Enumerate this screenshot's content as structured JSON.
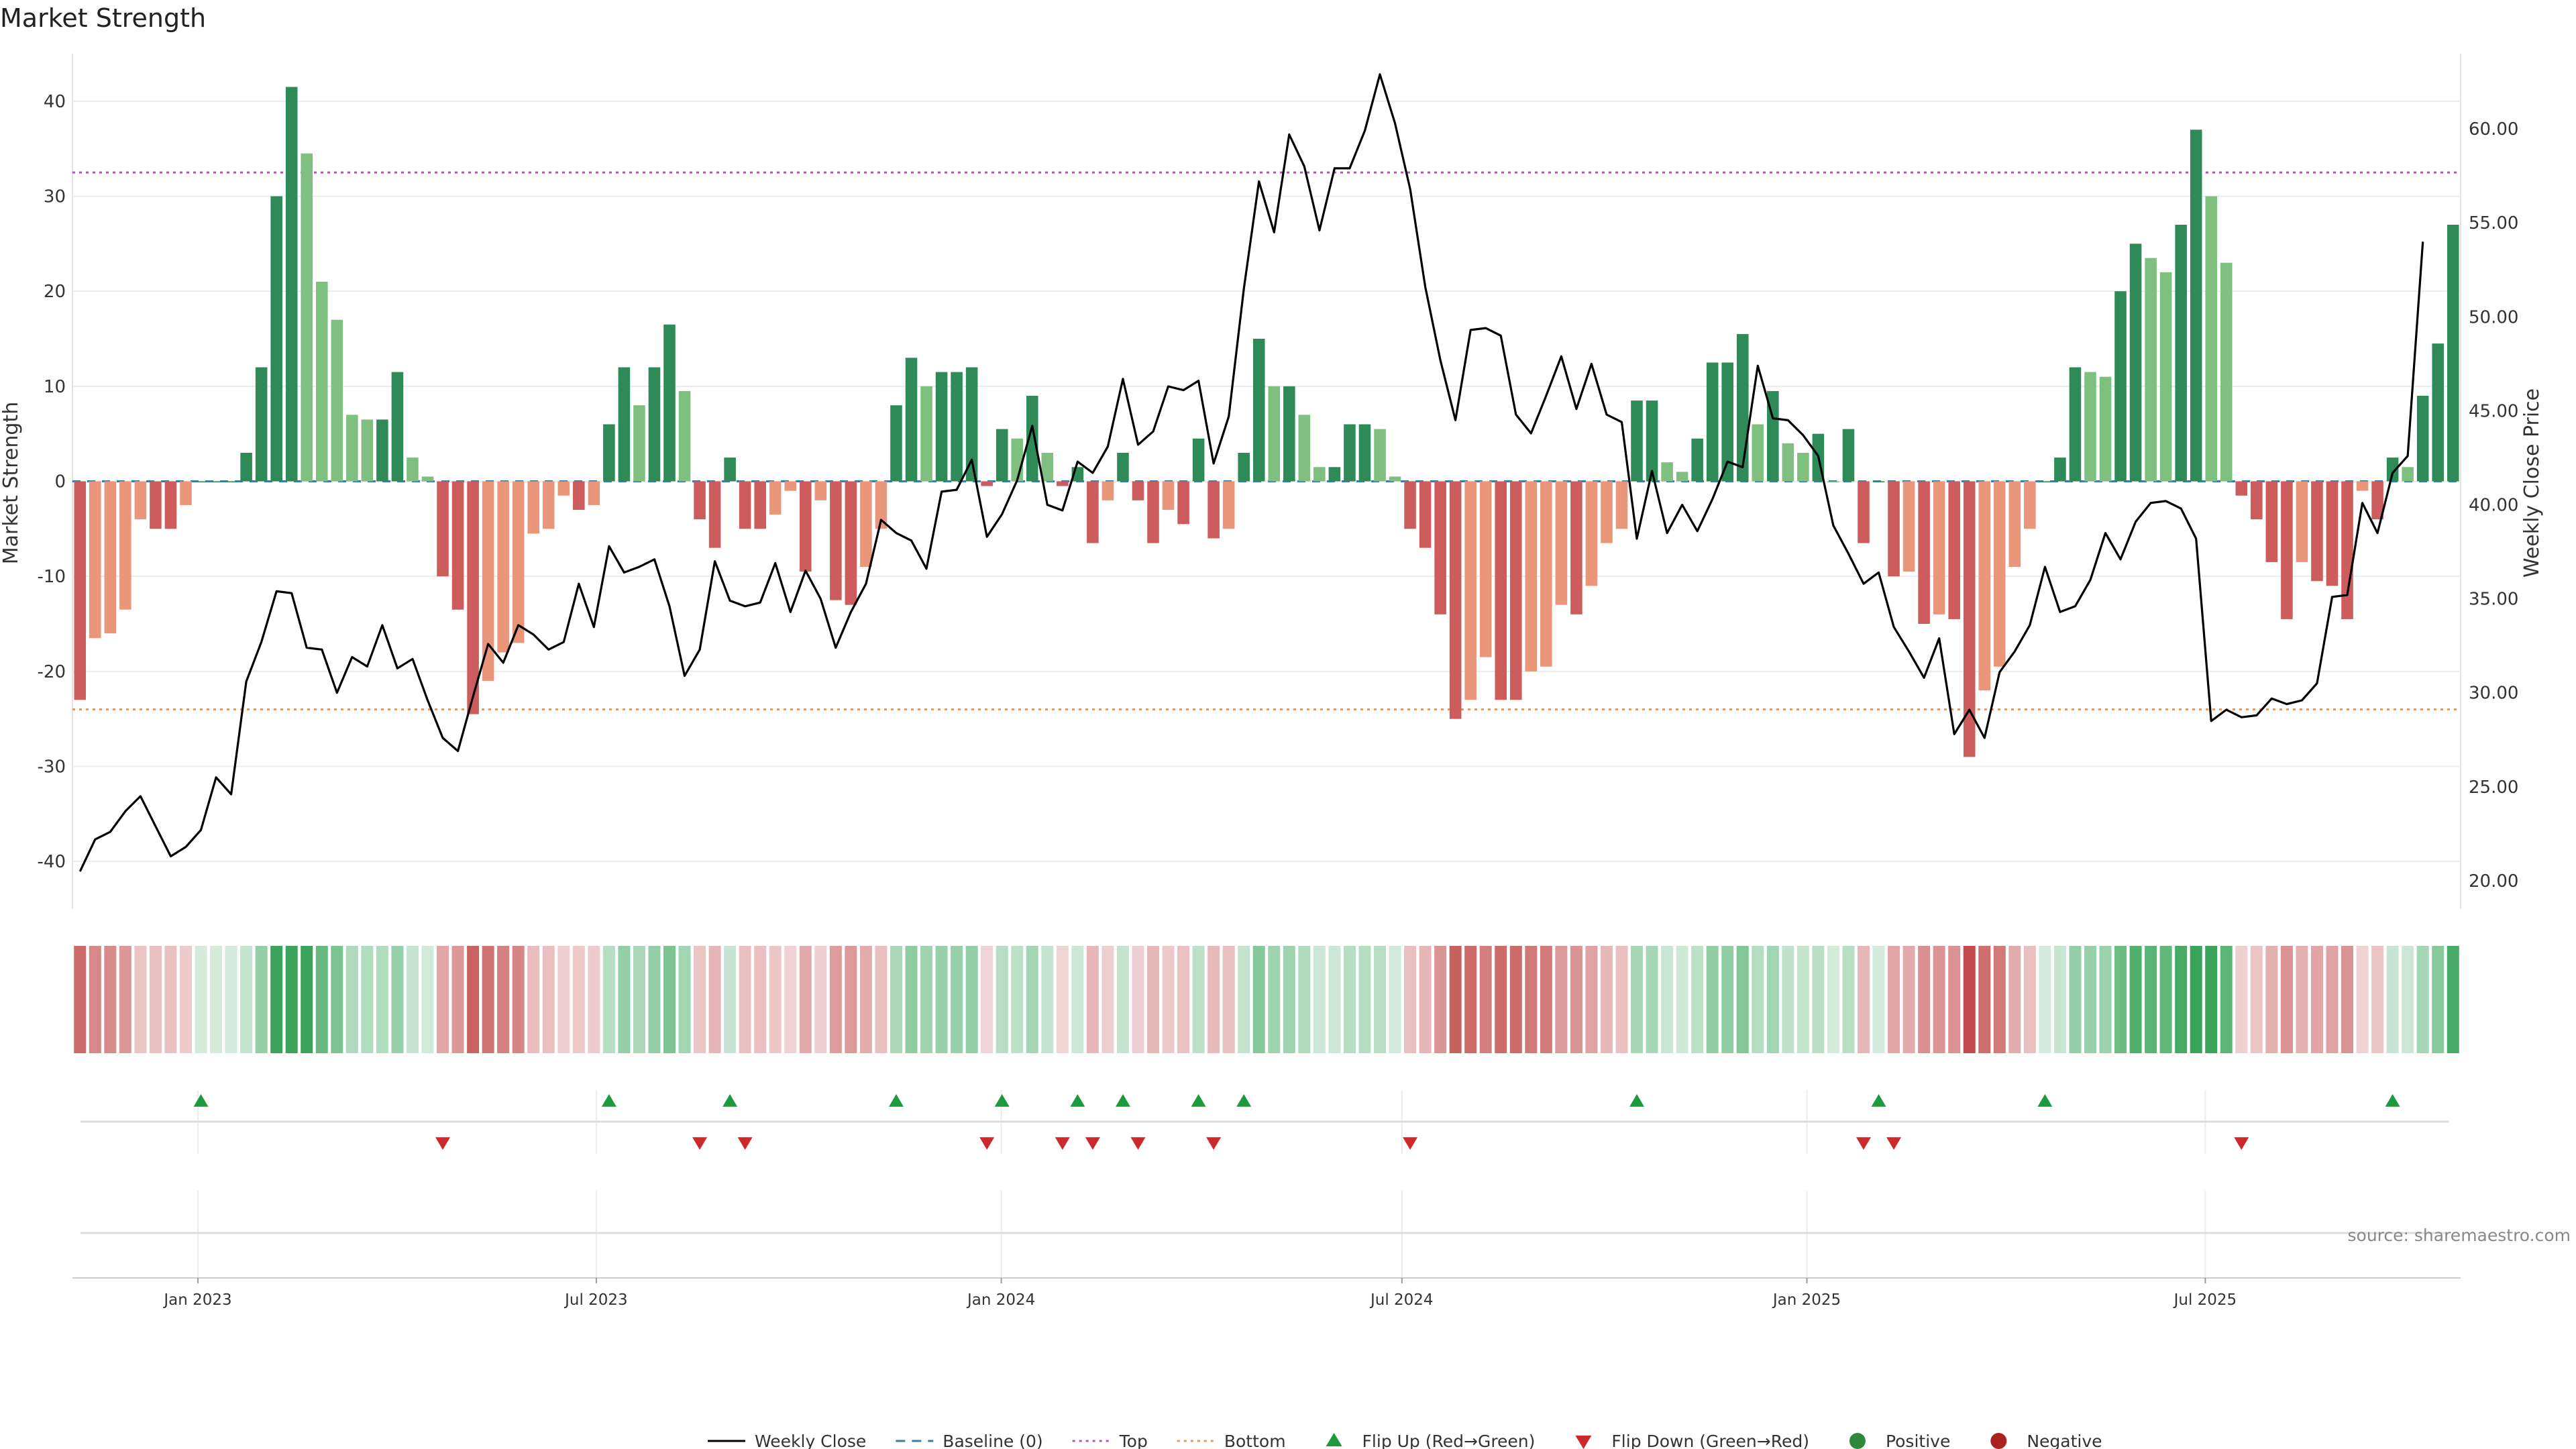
{
  "chart_data": {
    "type": "bar",
    "title": "Market Strength",
    "ylabel": "Market Strength",
    "y2label": "Weekly Close Price",
    "ylim": [
      -45,
      45
    ],
    "y2lim": [
      18.5,
      64
    ],
    "yticks": [
      40,
      30,
      20,
      10,
      0,
      -10,
      -20,
      -30,
      -40
    ],
    "y2ticks": [
      "60.00",
      "55.00",
      "50.00",
      "45.00",
      "40.00",
      "35.00",
      "30.00",
      "25.00",
      "20.00"
    ],
    "x_start": "2022-11-05",
    "x_end": "2025-10-25",
    "x_tick_labels": [
      {
        "label": "Jan 2023",
        "date": "2023-01-01"
      },
      {
        "label": "Jul 2023",
        "date": "2023-07-01"
      },
      {
        "label": "Jan 2024",
        "date": "2024-01-01"
      },
      {
        "label": "Jul 2024",
        "date": "2024-07-01"
      },
      {
        "label": "Jan 2025",
        "date": "2025-01-01"
      },
      {
        "label": "Jul 2025",
        "date": "2025-07-01"
      }
    ],
    "reference_lines": {
      "top": 32.5,
      "bottom": -24,
      "baseline": 0
    },
    "strength": [
      -23,
      -16.5,
      -16,
      -13.5,
      -4,
      -5,
      -5,
      -2.5,
      0,
      0,
      0,
      3,
      12,
      30,
      41.5,
      34.5,
      21,
      17,
      7,
      6.5,
      6.5,
      11.5,
      2.5,
      0.5,
      -10,
      -13.5,
      -24.5,
      -21,
      -18,
      -17,
      -5.5,
      -5,
      -1.5,
      -3,
      -2.5,
      6,
      12,
      8,
      12,
      16.5,
      9.5,
      -4,
      -7,
      2.5,
      -5,
      -5,
      -3.5,
      -1,
      -9.5,
      -2,
      -12.5,
      -13,
      -9,
      -5,
      8,
      13,
      10,
      11.5,
      11.5,
      12,
      -0.5,
      5.5,
      4.5,
      9,
      3,
      -0.5,
      1.5,
      -6.5,
      -2,
      3,
      -2,
      -6.5,
      -3,
      -4.5,
      4.5,
      -6,
      -5,
      3,
      15,
      10,
      10,
      7,
      1.5,
      1.5,
      6,
      6,
      5.5,
      0.5,
      -5,
      -7,
      -14,
      -25,
      -23,
      -18.5,
      -23,
      -23,
      -20,
      -19.5,
      -13,
      -14,
      -11,
      -6.5,
      -5,
      8.5,
      8.5,
      2,
      1,
      4.5,
      12.5,
      12.5,
      15.5,
      6,
      9.5,
      4,
      3,
      5,
      0,
      5.5,
      -6.5,
      0,
      -10,
      -9.5,
      -15,
      -14,
      -14.5,
      -29,
      -22,
      -19.5,
      -9,
      -5,
      0,
      2.5,
      12,
      11.5,
      11,
      20,
      25,
      23.5,
      22,
      27,
      37,
      30,
      23,
      -1.5,
      -4,
      -8.5,
      -14.5,
      -8.5,
      -10.5,
      -11,
      -14.5,
      -1,
      -4,
      2.5,
      1.5,
      9,
      14.5,
      27
    ],
    "close": [
      20.5,
      22.2,
      22.6,
      23.7,
      24.5,
      22.9,
      21.3,
      21.8,
      22.7,
      25.5,
      24.6,
      30.6,
      32.7,
      35.4,
      35.3,
      32.4,
      32.3,
      30,
      31.9,
      31.4,
      33.6,
      31.3,
      31.8,
      29.6,
      27.6,
      26.9,
      29.8,
      32.6,
      31.6,
      33.6,
      33.1,
      32.3,
      32.7,
      35.8,
      33.5,
      37.8,
      36.4,
      36.7,
      37.1,
      34.6,
      30.9,
      32.3,
      37,
      34.9,
      34.6,
      34.8,
      36.9,
      34.3,
      36.5,
      35,
      32.4,
      34.3,
      35.8,
      39.2,
      38.5,
      38.1,
      36.6,
      40.7,
      40.8,
      42.4,
      38.3,
      39.5,
      41.3,
      44.2,
      40,
      39.7,
      42.3,
      41.7,
      43.1,
      46.7,
      43.2,
      43.9,
      46.3,
      46.1,
      46.6,
      42.2,
      44.7,
      51.5,
      57.2,
      54.5,
      59.7,
      58,
      54.6,
      57.9,
      57.9,
      59.9,
      62.9,
      60.3,
      56.8,
      51.6,
      47.7,
      44.5,
      49.3,
      49.4,
      49,
      44.8,
      43.8,
      45.8,
      47.9,
      45.1,
      47.5,
      44.8,
      44.4,
      38.2,
      41.8,
      38.5,
      40,
      38.6,
      40.3,
      42.3,
      42,
      47.4,
      44.6,
      44.5,
      43.7,
      42.6,
      38.9,
      37.4,
      35.8,
      36.4,
      33.5,
      32.2,
      30.8,
      32.9,
      27.8,
      29.1,
      27.6,
      31.1,
      32.2,
      33.6,
      36.7,
      34.3,
      34.6,
      36,
      38.5,
      37.1,
      39.1,
      40.1,
      40.2,
      39.8,
      38.2,
      28.5,
      29.1,
      28.7,
      28.8,
      29.7,
      29.4,
      29.6,
      30.5,
      35.1,
      35.2,
      40.1,
      38.5,
      41.7,
      42.6,
      54
    ]
  },
  "legend": [
    {
      "label": "Weekly Close",
      "kind": "line",
      "color": "#000000"
    },
    {
      "label": "Baseline (0)",
      "kind": "dash",
      "color": "#3a7ca5"
    },
    {
      "label": "Top",
      "kind": "dot",
      "color": "#b05ab5"
    },
    {
      "label": "Bottom",
      "kind": "dot",
      "color": "#e09a6a"
    },
    {
      "label": "Flip Up (Red→Green)",
      "kind": "tri-up",
      "color": "#1e9a3e"
    },
    {
      "label": "Flip Down (Green→Red)",
      "kind": "tri-down",
      "color": "#cc2a2a"
    },
    {
      "label": "Positive",
      "kind": "circle",
      "color": "#2d8a3a"
    },
    {
      "label": "Negative",
      "kind": "circle",
      "color": "#aa2222"
    }
  ],
  "colors": {
    "strong_pos": "#2e8b57",
    "light_pos": "#7fbf7f",
    "strong_neg": "#cd5c5c",
    "light_neg": "#e9967a",
    "top_line": "#b05ab5",
    "bottom_line": "#e09a6a",
    "baseline": "#3a7ca5"
  },
  "source": "source: sharemaestro.com"
}
